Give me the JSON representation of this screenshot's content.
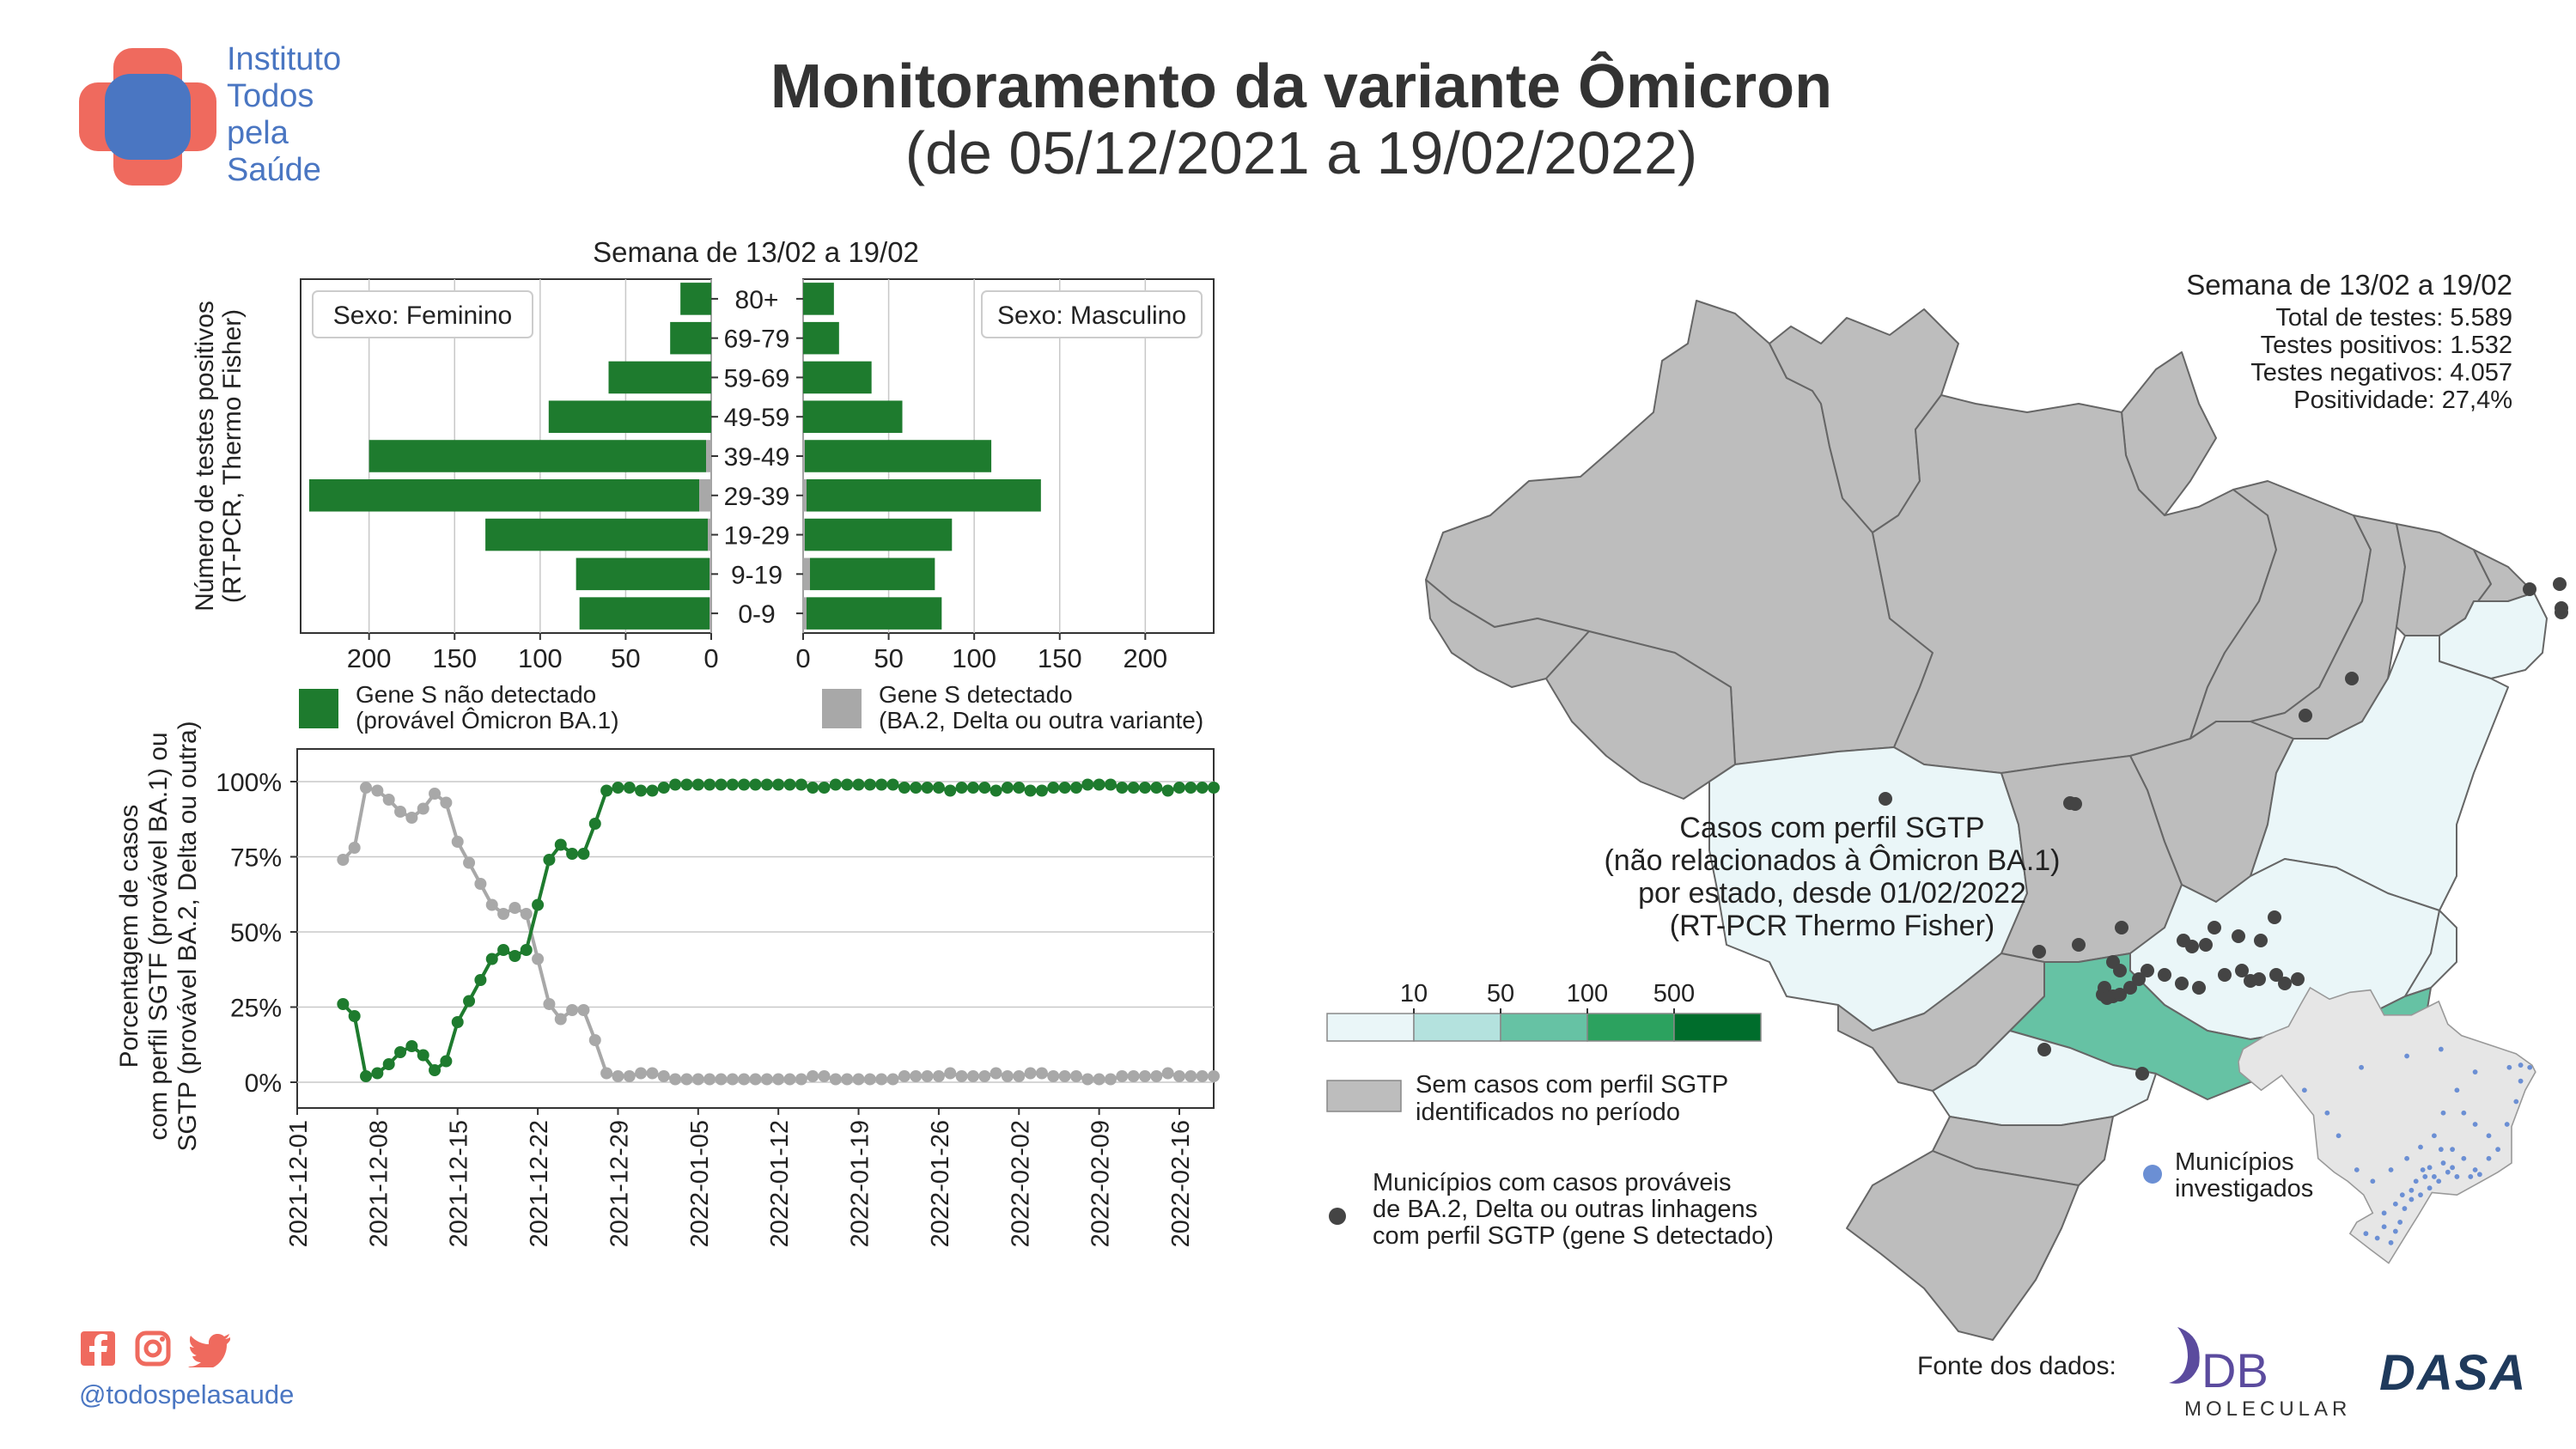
{
  "header": {
    "title": "Monitoramento da variante Ômicron",
    "subtitle": "(de 05/12/2021 a 19/02/2022)"
  },
  "logo": {
    "lines": [
      "Instituto",
      "Todos",
      "pela",
      "Saúde"
    ]
  },
  "footer": {
    "handle": "@todospelasaude",
    "source_label": "Fonte dos dados:",
    "db_text": "DB",
    "db_subtext": "MOLECULAR",
    "dasa_text": "DASA"
  },
  "stats": {
    "title": "Semana de 13/02 a 19/02",
    "lines": [
      "Total de testes: 5.589",
      "Testes positivos:  1.532",
      "Testes negativos:  4.057",
      "Positividade: 27,4%"
    ]
  },
  "chart_data": [
    {
      "type": "bar",
      "title": "Semana de 13/02 a 19/02",
      "ylabel": "Número de testes positivos\n(RT-PCR, Thermo Fisher)",
      "categories": [
        "80+",
        "69-79",
        "59-69",
        "49-59",
        "39-49",
        "29-39",
        "19-29",
        "9-19",
        "0-9"
      ],
      "panels": [
        {
          "label": "Sexo: Feminino",
          "series": [
            {
              "name": "Gene S não detectado\n(provável Ômicron BA.1)",
              "values": [
                18,
                24,
                60,
                95,
                197,
                228,
                130,
                78,
                76
              ]
            },
            {
              "name": "Gene S detectado\n(BA.2, Delta ou outra variante)",
              "values": [
                0,
                0,
                0,
                0,
                3,
                7,
                2,
                1,
                1
              ]
            }
          ],
          "xlim": [
            240,
            0
          ],
          "xticks": [
            "200",
            "150",
            "100",
            "50",
            "0"
          ]
        },
        {
          "label": "Sexo: Masculino",
          "series": [
            {
              "name": "Gene S não detectado\n(provável Ômicron BA.1)",
              "values": [
                18,
                21,
                40,
                58,
                109,
                137,
                86,
                73,
                79
              ]
            },
            {
              "name": "Gene S detectado\n(BA.2, Delta ou outra variante)",
              "values": [
                0,
                0,
                0,
                0,
                1,
                2,
                1,
                4,
                2
              ]
            }
          ],
          "xlim": [
            0,
            240
          ],
          "xticks": [
            "0",
            "50",
            "100",
            "150",
            "200"
          ]
        }
      ],
      "colors": {
        "not_detected": "#1e7b2e",
        "detected": "#a8a8a8"
      }
    },
    {
      "type": "line",
      "ylabel": "Porcentagem de casos\ncom perfil SGTF (provável BA.1) ou\nSGTP (provável BA.2, Delta ou outra)",
      "ylim": [
        0,
        100
      ],
      "yticks": [
        "0%",
        "25%",
        "50%",
        "75%",
        "100%"
      ],
      "xlim": [
        "2021-12-01",
        "2022-02-19"
      ],
      "xticks": [
        "2021-12-01",
        "2021-12-08",
        "2021-12-15",
        "2021-12-22",
        "2021-12-29",
        "2022-01-05",
        "2022-01-12",
        "2022-01-19",
        "2022-01-26",
        "2022-02-02",
        "2022-02-09",
        "2022-02-16"
      ],
      "grid": true,
      "x": [
        "2021-12-05",
        "2021-12-06",
        "2021-12-07",
        "2021-12-08",
        "2021-12-09",
        "2021-12-10",
        "2021-12-11",
        "2021-12-12",
        "2021-12-13",
        "2021-12-14",
        "2021-12-15",
        "2021-12-16",
        "2021-12-17",
        "2021-12-18",
        "2021-12-19",
        "2021-12-20",
        "2021-12-21",
        "2021-12-22",
        "2021-12-23",
        "2021-12-24",
        "2021-12-25",
        "2021-12-26",
        "2021-12-27",
        "2021-12-28",
        "2021-12-29",
        "2021-12-30",
        "2021-12-31",
        "2022-01-01",
        "2022-01-02",
        "2022-01-03",
        "2022-01-04",
        "2022-01-05",
        "2022-01-06",
        "2022-01-07",
        "2022-01-08",
        "2022-01-09",
        "2022-01-10",
        "2022-01-11",
        "2022-01-12",
        "2022-01-13",
        "2022-01-14",
        "2022-01-15",
        "2022-01-16",
        "2022-01-17",
        "2022-01-18",
        "2022-01-19",
        "2022-01-20",
        "2022-01-21",
        "2022-01-22",
        "2022-01-23",
        "2022-01-24",
        "2022-01-25",
        "2022-01-26",
        "2022-01-27",
        "2022-01-28",
        "2022-01-29",
        "2022-01-30",
        "2022-01-31",
        "2022-02-01",
        "2022-02-02",
        "2022-02-03",
        "2022-02-04",
        "2022-02-05",
        "2022-02-06",
        "2022-02-07",
        "2022-02-08",
        "2022-02-09",
        "2022-02-10",
        "2022-02-11",
        "2022-02-12",
        "2022-02-13",
        "2022-02-14",
        "2022-02-15",
        "2022-02-16",
        "2022-02-17",
        "2022-02-18",
        "2022-02-19"
      ],
      "series": [
        {
          "name": "Gene S não detectado\n(provável Ômicron BA.1)",
          "color": "#1e7b2e",
          "values": [
            26,
            22,
            2,
            3,
            6,
            10,
            12,
            9,
            4,
            7,
            20,
            27,
            34,
            41,
            44,
            42,
            44,
            59,
            74,
            79,
            76,
            76,
            86,
            97,
            98,
            98,
            97,
            97,
            98,
            99,
            99,
            99,
            99,
            99,
            99,
            99,
            99,
            99,
            99,
            99,
            99,
            98,
            98,
            99,
            99,
            99,
            99,
            99,
            99,
            98,
            98,
            98,
            98,
            97,
            98,
            98,
            98,
            97,
            98,
            98,
            97,
            97,
            98,
            98,
            98,
            99,
            99,
            99,
            98,
            98,
            98,
            98,
            97,
            98,
            98,
            98,
            98
          ]
        },
        {
          "name": "Gene S detectado\n(BA.2, Delta ou outra variante)",
          "color": "#a8a8a8",
          "values": [
            74,
            78,
            98,
            97,
            94,
            90,
            88,
            91,
            96,
            93,
            80,
            73,
            66,
            59,
            56,
            58,
            56,
            41,
            26,
            21,
            24,
            24,
            14,
            3,
            2,
            2,
            3,
            3,
            2,
            1,
            1,
            1,
            1,
            1,
            1,
            1,
            1,
            1,
            1,
            1,
            1,
            2,
            2,
            1,
            1,
            1,
            1,
            1,
            1,
            2,
            2,
            2,
            2,
            3,
            2,
            2,
            2,
            3,
            2,
            2,
            3,
            3,
            2,
            2,
            2,
            1,
            1,
            1,
            2,
            2,
            2,
            2,
            3,
            2,
            2,
            2,
            2
          ]
        }
      ]
    },
    {
      "type": "heatmap",
      "map_title": "Casos com perfil SGTP\n(não relacionados à Ômicron BA.1)\npor estado, desde 01/02/2022\n(RT-PCR Thermo Fisher)",
      "scale_ticks": [
        "10",
        "50",
        "100",
        "500"
      ],
      "scale_colors": [
        "#eaf6f8",
        "#b4e2de",
        "#66c2a4",
        "#2ca25f",
        "#006d2c"
      ],
      "no_data_label": "Sem casos com perfil SGTP\nidentificados no período",
      "no_data_color": "#bdbdbd",
      "dot_label": "Municípios com casos prováveis\nde BA.2, Delta ou outras linhagens\ncom perfil SGTP (gene S detectado)",
      "inset_label": "Municípios\ninvestigados",
      "dot_color": "#444444",
      "inset_dot_color": "#6b8fd4"
    }
  ]
}
